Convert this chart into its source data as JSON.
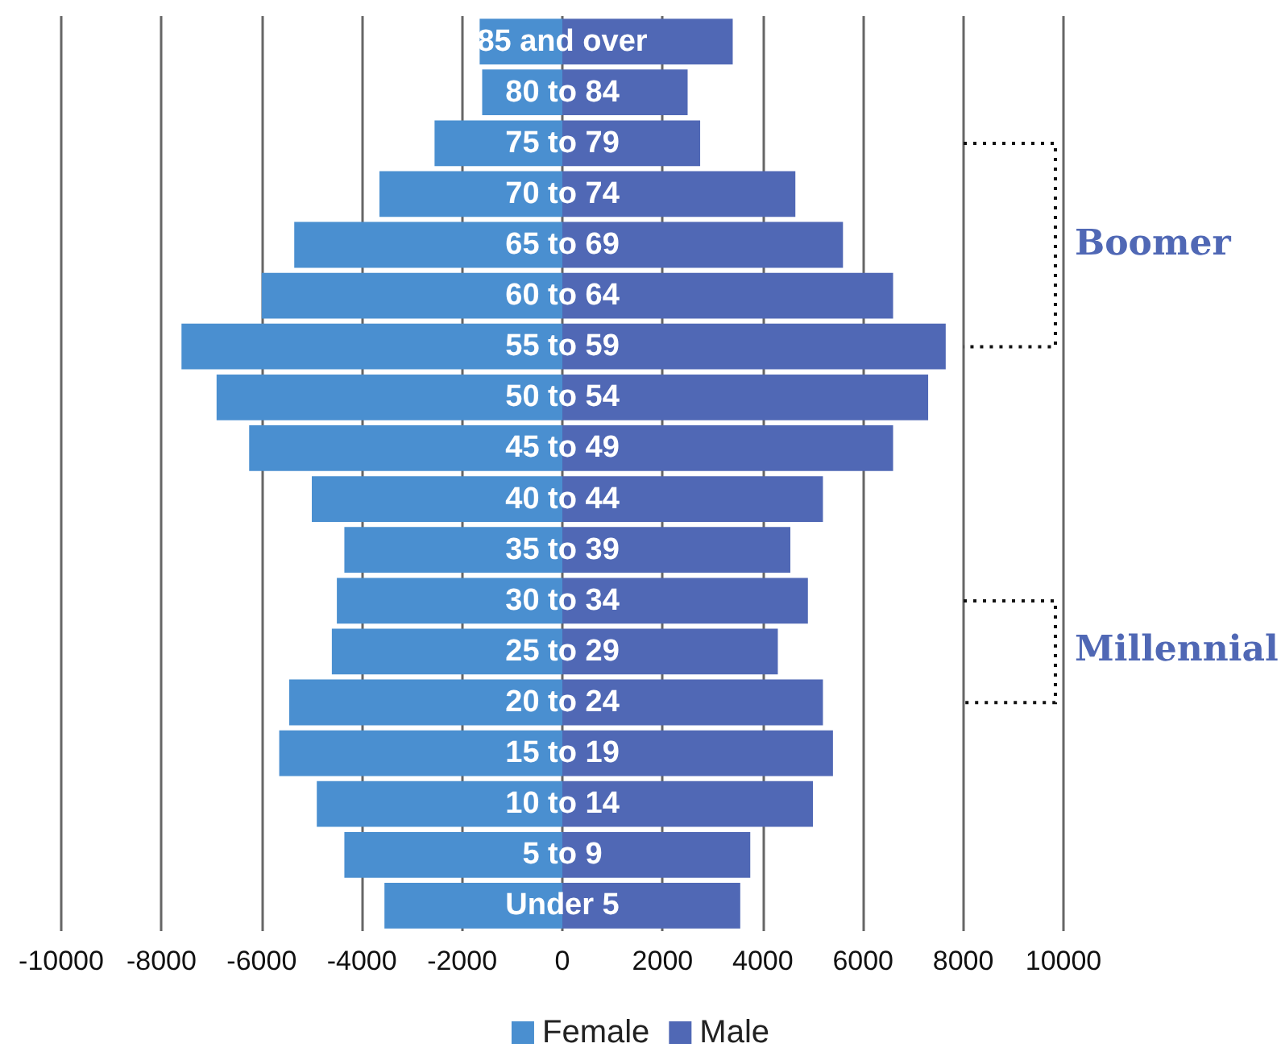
{
  "chart_data": {
    "type": "bar",
    "orientation": "horizontal",
    "categories": [
      "85 and over",
      "80 to 84",
      "75 to 79",
      "70 to 74",
      "65 to 69",
      "60 to 64",
      "55 to 59",
      "50 to 54",
      "45 to 49",
      "40 to 44",
      "35 to 39",
      "30 to 34",
      "25 to 29",
      "20 to 24",
      "15 to 19",
      "10 to 14",
      "5 to 9",
      "Under 5"
    ],
    "series": [
      {
        "name": "Female",
        "color": "#4a8fd0",
        "values": [
          -1650,
          -1600,
          -2550,
          -3650,
          -5350,
          -6000,
          -7600,
          -6900,
          -6250,
          -5000,
          -4350,
          -4500,
          -4600,
          -5450,
          -5650,
          -4900,
          -4350,
          -3550
        ]
      },
      {
        "name": "Male",
        "color": "#5068b5",
        "values": [
          3400,
          2500,
          2750,
          4650,
          5600,
          6600,
          7650,
          7300,
          6600,
          5200,
          4550,
          4900,
          4300,
          5200,
          5400,
          5000,
          3750,
          3550
        ]
      }
    ],
    "xlim": [
      -10000,
      10000
    ],
    "xticks": [
      -10000,
      -8000,
      -6000,
      -4000,
      -2000,
      0,
      2000,
      4000,
      6000,
      8000,
      10000
    ],
    "grid": "x",
    "legend": "bottom",
    "stacked": true,
    "annotations": [
      "Boomer",
      "Millennial"
    ]
  }
}
